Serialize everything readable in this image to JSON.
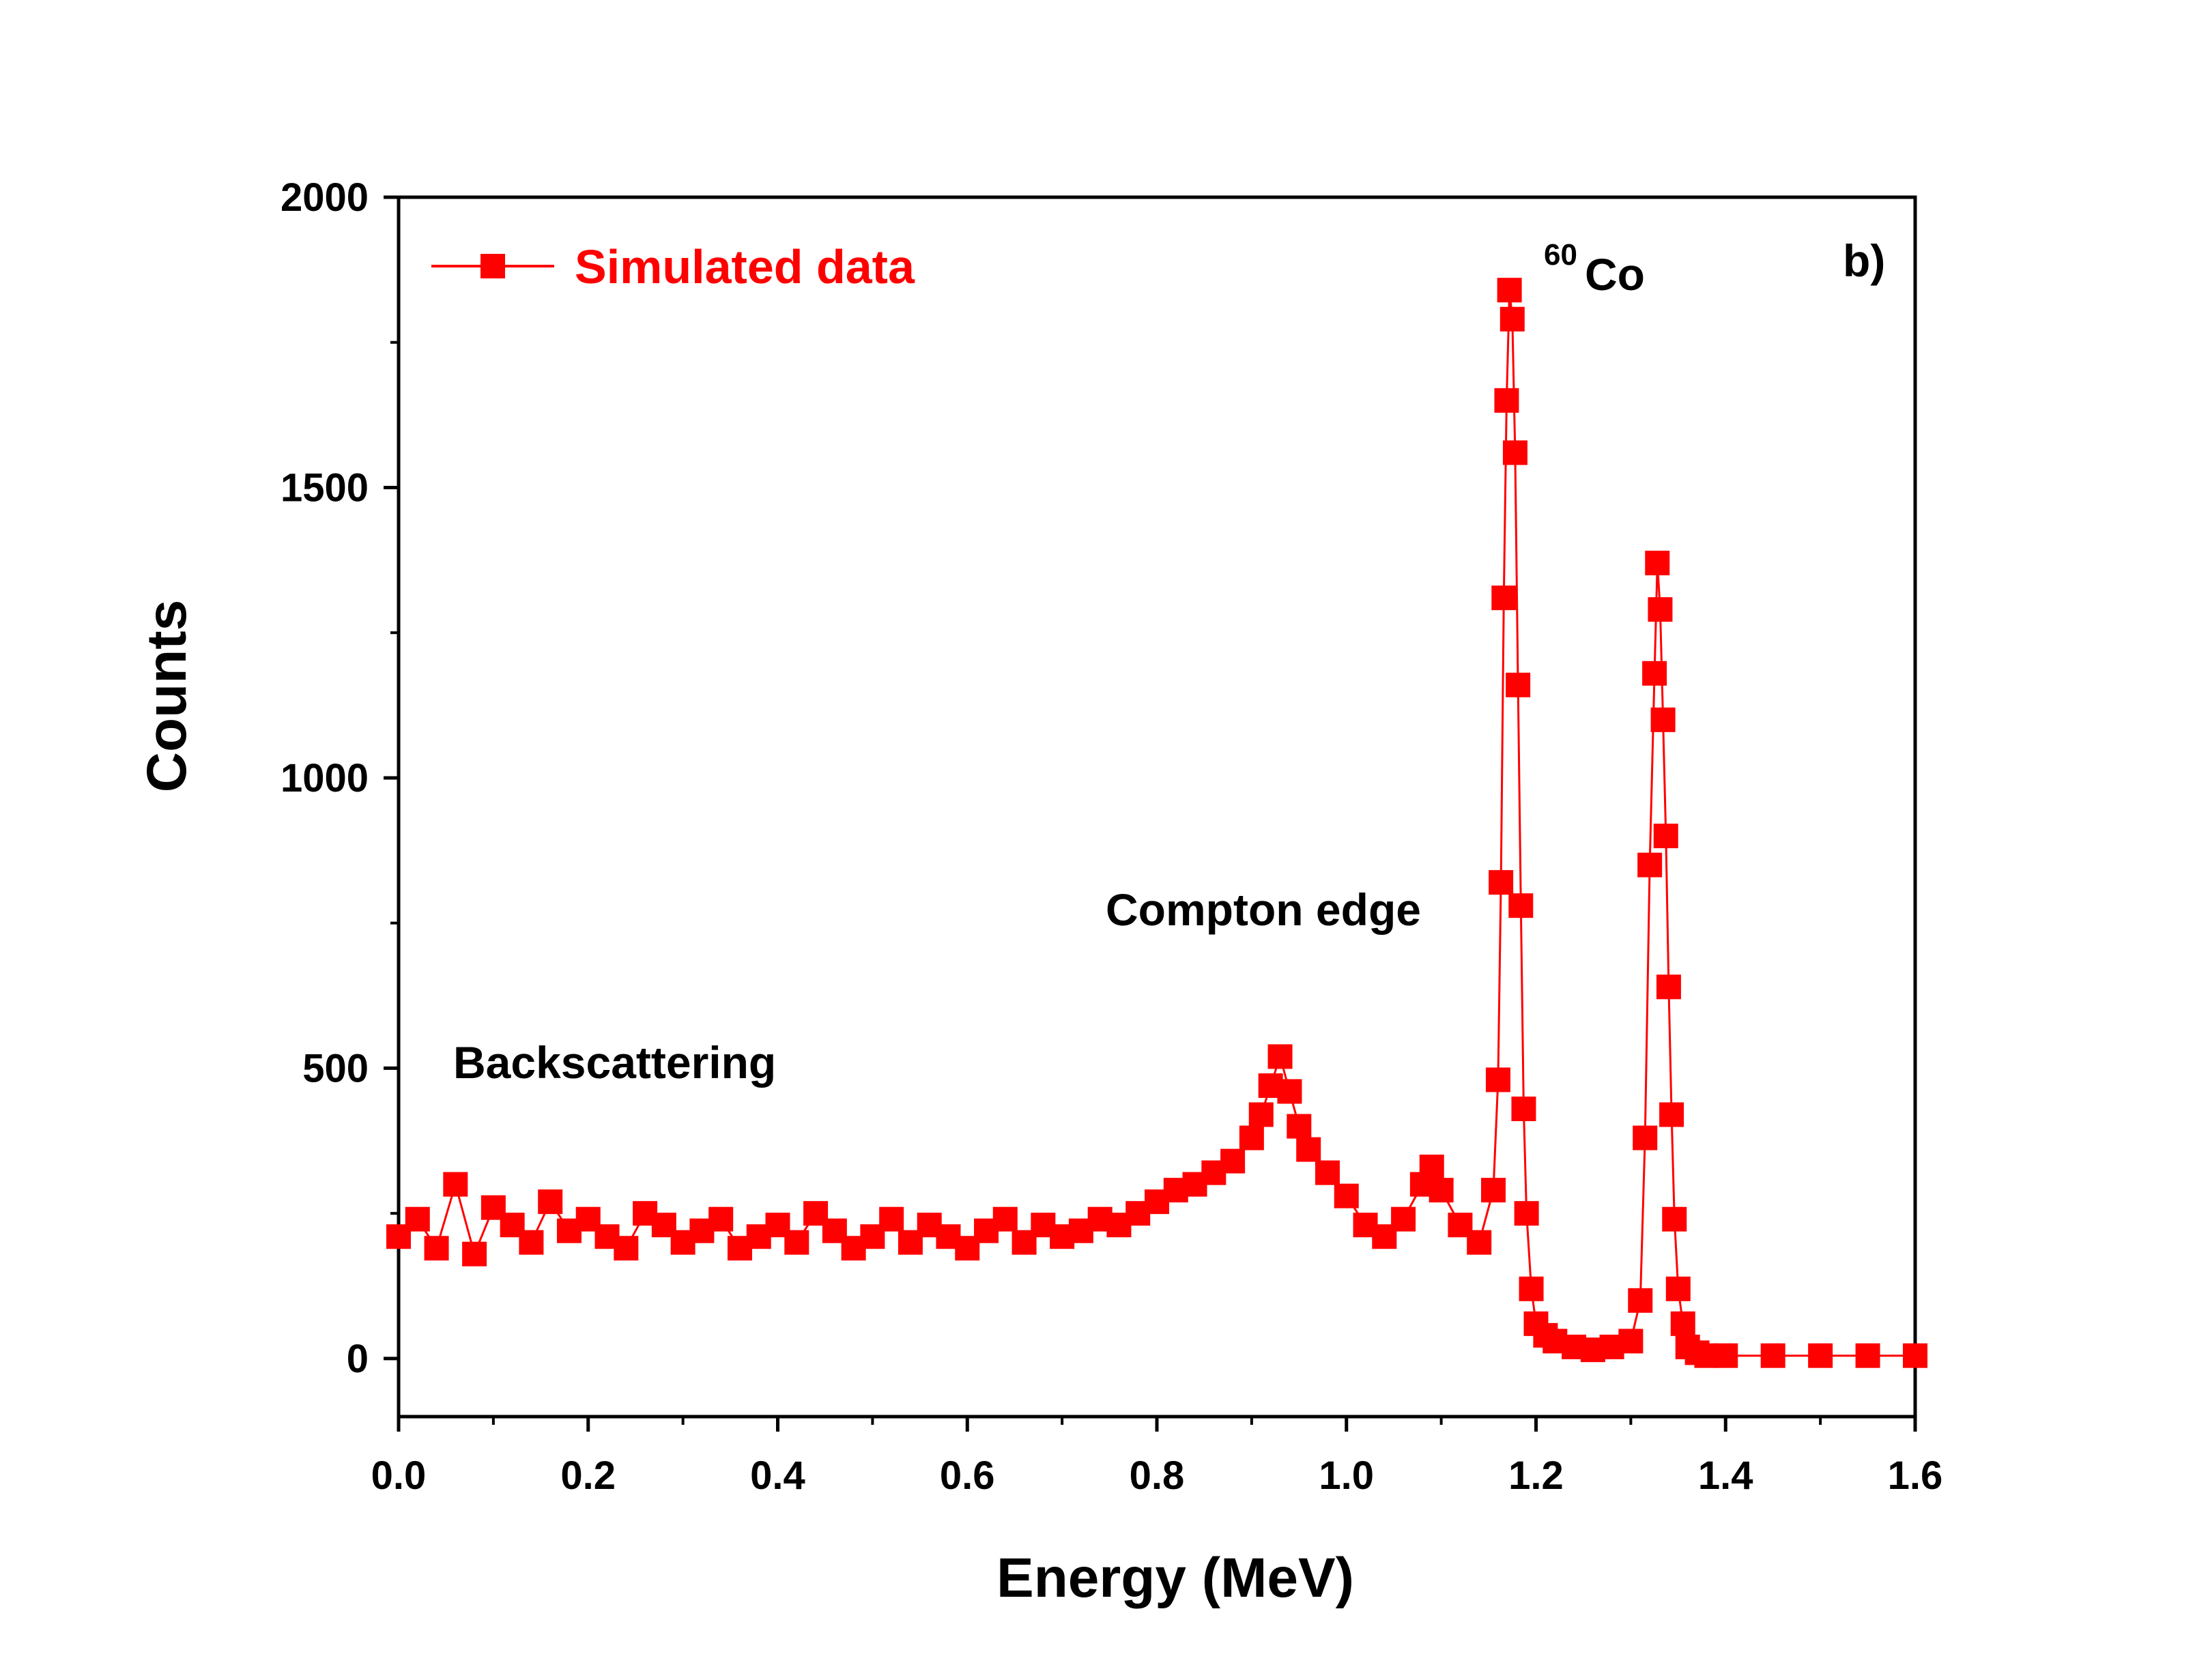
{
  "chart_data": {
    "type": "scatter",
    "title": "",
    "xlabel": "Energy (MeV)",
    "ylabel": "Counts",
    "xlim": [
      0.0,
      1.6
    ],
    "ylim": [
      -100,
      2000
    ],
    "xticks": [
      0.0,
      0.2,
      0.4,
      0.6,
      0.8,
      1.0,
      1.2,
      1.4,
      1.6
    ],
    "xtick_labels": [
      "0.0",
      "0.2",
      "0.4",
      "0.6",
      "0.8",
      "1.0",
      "1.2",
      "1.4",
      "1.6"
    ],
    "yticks": [
      0,
      500,
      1000,
      1500,
      2000
    ],
    "ytick_labels": [
      "0",
      "500",
      "1000",
      "1500",
      "2000"
    ],
    "panel_label": "b)",
    "legend": {
      "position": "top-left",
      "entries": [
        {
          "label": "Simulated data",
          "color": "#ff0000",
          "marker": "square"
        }
      ]
    },
    "annotations": [
      {
        "text": "Backscattering",
        "x": 0.06,
        "y": 500
      },
      {
        "text": "Compton edge",
        "x": 0.75,
        "y": 750
      },
      {
        "text": "60",
        "role": "superscript",
        "x": 1.205,
        "y": 1900
      },
      {
        "text": "Co",
        "x": 1.225,
        "y": 1860
      }
    ],
    "series": [
      {
        "name": "Simulated data",
        "color": "#ff0000",
        "x": [
          0.0,
          0.02,
          0.04,
          0.06,
          0.08,
          0.1,
          0.12,
          0.14,
          0.16,
          0.18,
          0.2,
          0.22,
          0.24,
          0.26,
          0.28,
          0.3,
          0.32,
          0.34,
          0.36,
          0.38,
          0.4,
          0.42,
          0.44,
          0.46,
          0.48,
          0.5,
          0.52,
          0.54,
          0.56,
          0.58,
          0.6,
          0.62,
          0.64,
          0.66,
          0.68,
          0.7,
          0.72,
          0.74,
          0.76,
          0.78,
          0.8,
          0.82,
          0.84,
          0.86,
          0.88,
          0.9,
          0.91,
          0.92,
          0.93,
          0.94,
          0.95,
          0.96,
          0.98,
          1.0,
          1.02,
          1.04,
          1.06,
          1.08,
          1.09,
          1.1,
          1.12,
          1.14,
          1.155,
          1.16,
          1.163,
          1.166,
          1.169,
          1.172,
          1.175,
          1.178,
          1.181,
          1.184,
          1.187,
          1.19,
          1.195,
          1.2,
          1.21,
          1.22,
          1.24,
          1.26,
          1.28,
          1.3,
          1.31,
          1.315,
          1.32,
          1.325,
          1.328,
          1.331,
          1.334,
          1.337,
          1.34,
          1.343,
          1.346,
          1.35,
          1.355,
          1.36,
          1.37,
          1.38,
          1.4,
          1.45,
          1.5,
          1.55,
          1.6
        ],
        "values": [
          210,
          240,
          190,
          300,
          180,
          260,
          230,
          200,
          270,
          220,
          240,
          210,
          190,
          250,
          230,
          200,
          220,
          240,
          190,
          210,
          230,
          200,
          250,
          220,
          190,
          210,
          240,
          200,
          230,
          210,
          190,
          220,
          240,
          200,
          230,
          210,
          220,
          240,
          230,
          250,
          270,
          290,
          300,
          320,
          340,
          380,
          420,
          470,
          520,
          460,
          400,
          360,
          320,
          280,
          230,
          210,
          240,
          300,
          330,
          290,
          230,
          200,
          290,
          480,
          820,
          1310,
          1650,
          1840,
          1790,
          1560,
          1160,
          780,
          430,
          250,
          120,
          60,
          40,
          30,
          20,
          15,
          20,
          30,
          100,
          380,
          850,
          1180,
          1370,
          1290,
          1100,
          900,
          640,
          420,
          240,
          120,
          60,
          20,
          10,
          5,
          5,
          5,
          5,
          5,
          5
        ]
      }
    ]
  }
}
